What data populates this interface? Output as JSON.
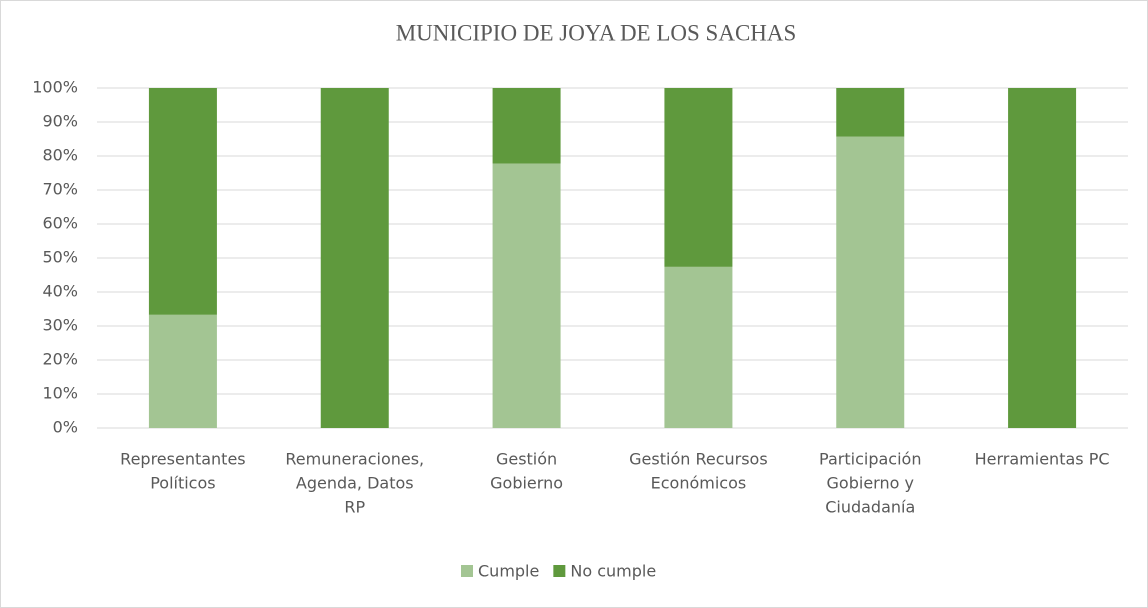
{
  "chart_data": {
    "type": "stacked_bar",
    "title": "MUNICIPIO DE JOYA DE LOS SACHAS",
    "categories": [
      [
        "Representantes",
        "Políticos"
      ],
      [
        "Remuneraciones,",
        "Agenda, Datos",
        "RP"
      ],
      [
        "Gestión",
        "Gobierno"
      ],
      [
        "Gestión Recursos",
        "Económicos"
      ],
      [
        "Participación",
        "Gobierno y",
        "Ciudadanía"
      ],
      [
        "Herramientas PC"
      ]
    ],
    "series": [
      {
        "name": "Cumple",
        "color": "#a3c593",
        "values": [
          33.3,
          0,
          77.8,
          47.4,
          85.7,
          0
        ]
      },
      {
        "name": "No cumple",
        "color": "#5f993d",
        "values": [
          66.7,
          100,
          22.2,
          52.6,
          14.3,
          100
        ]
      }
    ],
    "ylim": [
      0,
      100
    ],
    "yticks": [
      {
        "value": 0,
        "label": "0%"
      },
      {
        "value": 10,
        "label": "10%"
      },
      {
        "value": 20,
        "label": "20%"
      },
      {
        "value": 30,
        "label": "30%"
      },
      {
        "value": 40,
        "label": "40%"
      },
      {
        "value": 50,
        "label": "50%"
      },
      {
        "value": 60,
        "label": "60%"
      },
      {
        "value": 70,
        "label": "70%"
      },
      {
        "value": 80,
        "label": "80%"
      },
      {
        "value": 90,
        "label": "90%"
      },
      {
        "value": 100,
        "label": "100%"
      }
    ],
    "grid": true,
    "legend": "bottom"
  }
}
